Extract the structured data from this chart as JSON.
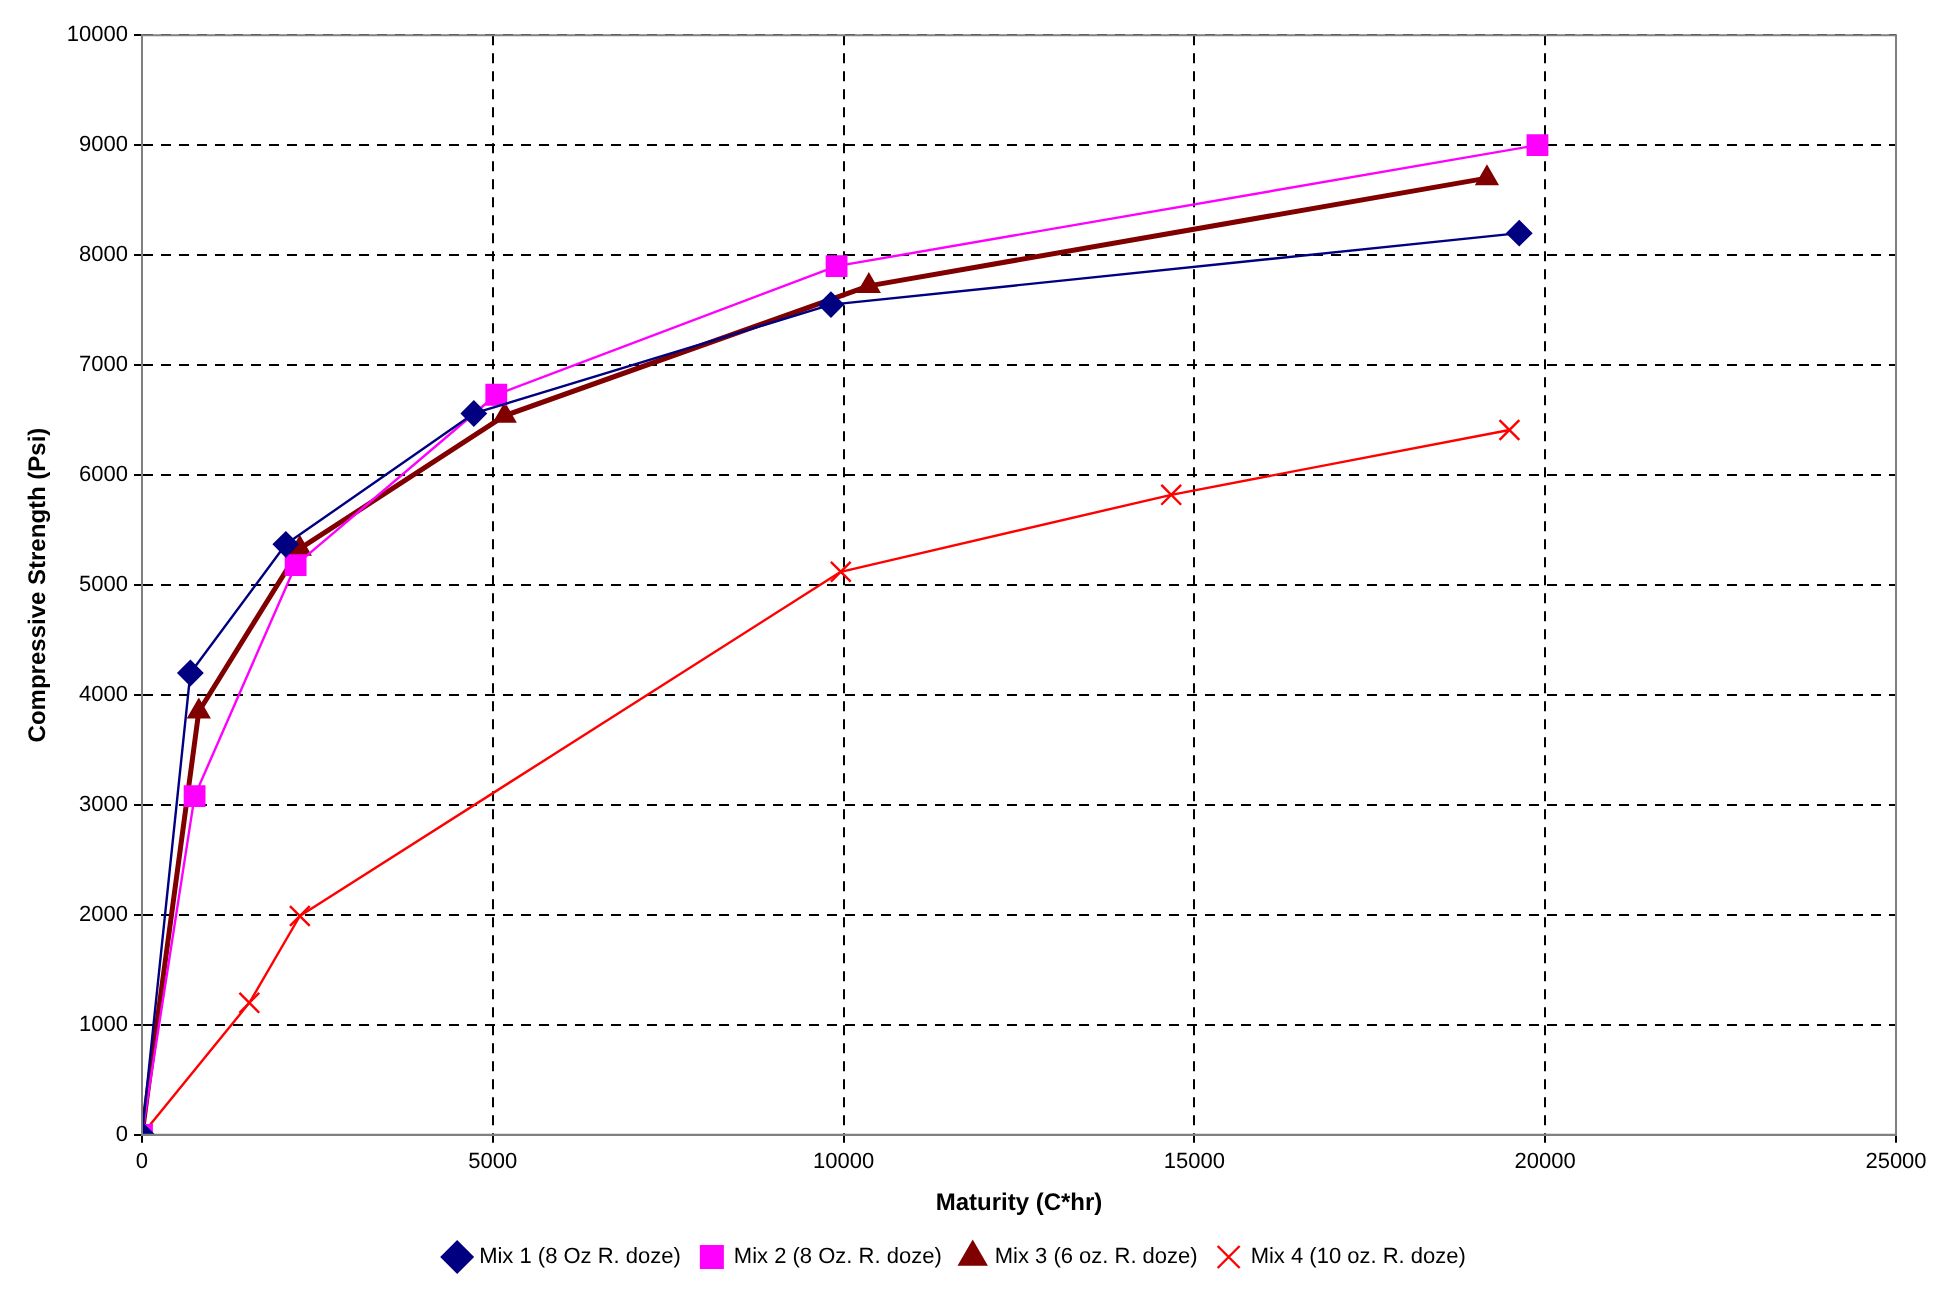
{
  "chart_data": {
    "type": "line",
    "xlabel": "Maturity (C*hr)",
    "ylabel": "Compressive Strength (Psi)",
    "xlim": [
      0,
      25000
    ],
    "xticks": [
      0,
      5000,
      10000,
      15000,
      20000,
      25000
    ],
    "ylim": [
      0,
      10000
    ],
    "yticks": [
      0,
      1000,
      2000,
      3000,
      4000,
      5000,
      6000,
      7000,
      8000,
      9000,
      10000
    ],
    "grid": true,
    "legend": "bottom",
    "series": [
      {
        "name": "Mix 1 (8 Oz R. doze)",
        "color": "#000080",
        "marker": "diamond",
        "x": [
          0,
          690,
          2050,
          4730,
          9820,
          19630
        ],
        "values": [
          0,
          4200,
          5370,
          6560,
          7550,
          8200
        ]
      },
      {
        "name": "Mix 2 (8 Oz. R. doze)",
        "color": "#ff00ff",
        "marker": "square",
        "x": [
          0,
          750,
          2190,
          5050,
          9900,
          19890
        ],
        "values": [
          0,
          3080,
          5180,
          6730,
          7900,
          9000
        ]
      },
      {
        "name": "Mix 3 (6 oz. R. doze)",
        "color": "#800000",
        "marker": "triangle",
        "x": [
          0,
          810,
          2250,
          5170,
          10360,
          19170
        ],
        "values": [
          0,
          3850,
          5330,
          6540,
          7720,
          8700
        ]
      },
      {
        "name": "Mix 4 (10 oz. R. doze)",
        "color": "#ff0000",
        "marker": "cross",
        "x": [
          0,
          1530,
          2250,
          9960,
          14670,
          19490
        ],
        "values": [
          0,
          1200,
          1990,
          5120,
          5820,
          6410
        ]
      }
    ]
  }
}
